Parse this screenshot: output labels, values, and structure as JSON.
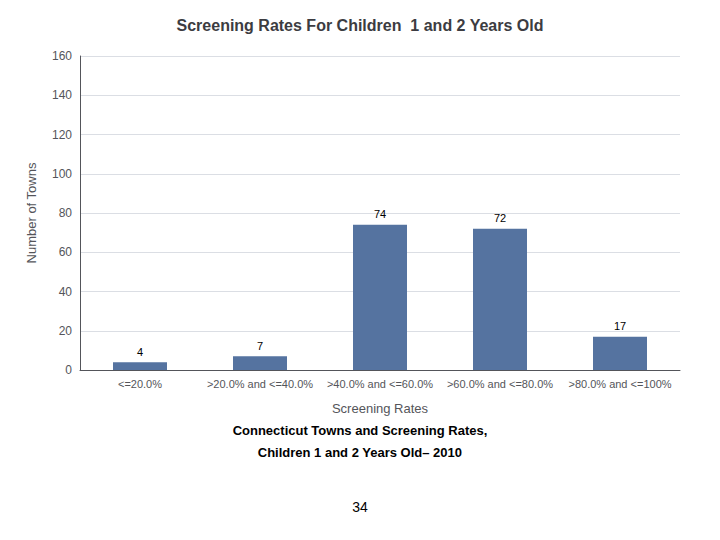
{
  "chart_data": {
    "type": "bar",
    "title": "Screening Rates For Children  1 and 2 Years Old",
    "xlabel": "Screening Rates",
    "ylabel": "Number of Towns",
    "categories": [
      "<=20.0%",
      ">20.0% and <=40.0%",
      ">40.0% and <=60.0%",
      ">60.0% and <=80.0%",
      ">80.0% and <=100%"
    ],
    "values": [
      4,
      7,
      74,
      72,
      17
    ],
    "color": "#5573a0",
    "ylim": [
      0,
      160
    ],
    "yticks": [
      0,
      20,
      40,
      60,
      80,
      100,
      120,
      140,
      160
    ],
    "grid": true,
    "data_labels": true,
    "subtitle": [
      "Connecticut Towns and Screening Rates,",
      "Children 1 and 2 Years Old– 2010"
    ],
    "annotations": [
      "34"
    ]
  }
}
